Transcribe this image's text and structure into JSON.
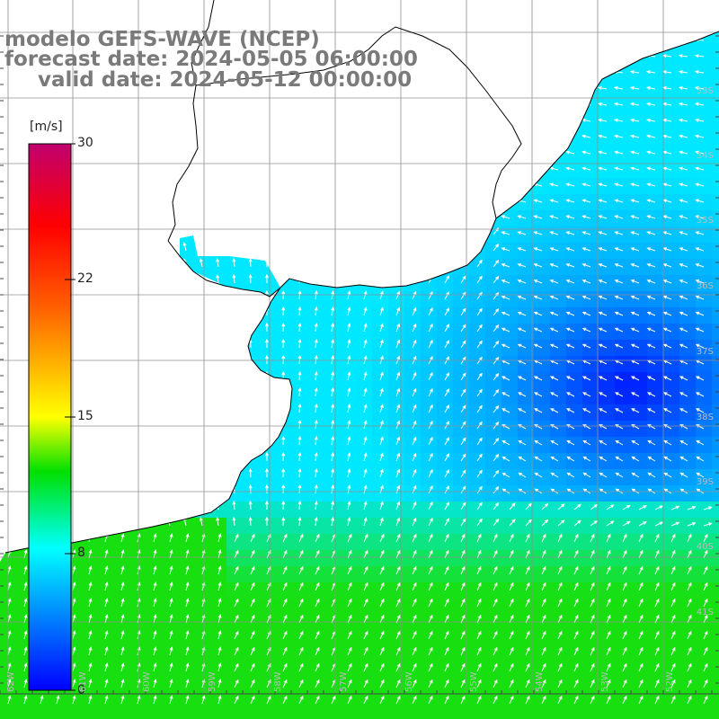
{
  "header": {
    "line1": "modelo GEFS-WAVE (NCEP)",
    "line2": "forecast date: 2024-05-05 06:00:00",
    "line3": "valid date: 2024-05-12 00:00:00"
  },
  "colorbar": {
    "unit": "[m/s]",
    "ticks": [
      "30",
      "22",
      "15",
      "8",
      "0"
    ],
    "colors": [
      "#c0006e",
      "#ff0000",
      "#ff8000",
      "#ffff00",
      "#00e000",
      "#00ffff",
      "#0000ff"
    ]
  },
  "map": {
    "latitude_labels": [
      "33S",
      "34S",
      "35S",
      "36S",
      "37S",
      "38S",
      "39S",
      "40S",
      "41S"
    ],
    "longitude_labels": [
      "62W",
      "61W",
      "60W",
      "59W",
      "58W",
      "57W",
      "56W",
      "55W",
      "54W",
      "53W",
      "52W"
    ],
    "colors": {
      "land": "#ffffff",
      "grid": "#909090",
      "coast": "#000000",
      "arrow": "#ffffff"
    }
  }
}
